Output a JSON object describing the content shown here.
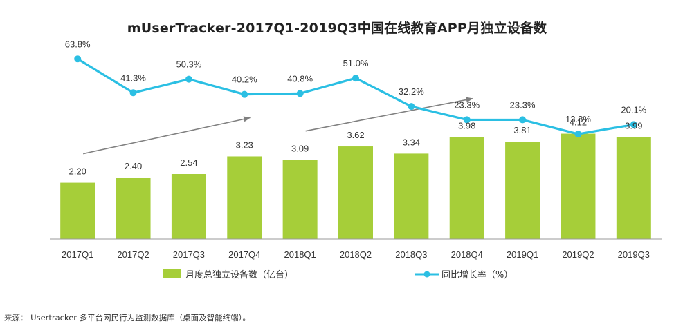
{
  "chart_data": {
    "type": "bar+line",
    "title": "mUserTracker-2017Q1-2019Q3中国在线教育APP月独立设备数",
    "categories": [
      "2017Q1",
      "2017Q2",
      "2017Q3",
      "2017Q4",
      "2018Q1",
      "2018Q2",
      "2018Q3",
      "2018Q4",
      "2019Q1",
      "2019Q2",
      "2019Q3"
    ],
    "series": [
      {
        "name": "月度总独立设备数（亿台）",
        "type": "bar",
        "color": "#a6ce39",
        "values": [
          2.2,
          2.4,
          2.54,
          3.23,
          3.09,
          3.62,
          3.34,
          3.98,
          3.81,
          4.12,
          3.99
        ],
        "labels": [
          "2.20",
          "2.40",
          "2.54",
          "3.23",
          "3.09",
          "3.62",
          "3.34",
          "3.98",
          "3.81",
          "4.12",
          "3.99"
        ]
      },
      {
        "name": "同比增长率（%）",
        "type": "line",
        "color": "#2bbfe3",
        "values": [
          63.8,
          41.3,
          50.3,
          40.2,
          40.8,
          51.0,
          32.2,
          23.3,
          23.3,
          13.8,
          20.1
        ],
        "labels": [
          "63.8%",
          "41.3%",
          "50.3%",
          "40.2%",
          "40.8%",
          "51.0%",
          "32.2%",
          "23.3%",
          "23.3%",
          "13.8%",
          "20.1%"
        ]
      }
    ],
    "bar_ylim": [
      0,
      9.35
    ],
    "line_ylim": [
      -56,
      103
    ],
    "annotations": [
      {
        "type": "trend-arrow",
        "from_category": "2017Q1",
        "to_category": "2017Q4"
      },
      {
        "type": "trend-arrow",
        "from_category": "2018Q1",
        "to_category": "2018Q4"
      }
    ],
    "axis_color": "#999999",
    "arrow_color": "#808080"
  },
  "source_note": "来源： Usertracker 多平台网民行为监测数据库（桌面及智能终端）。"
}
